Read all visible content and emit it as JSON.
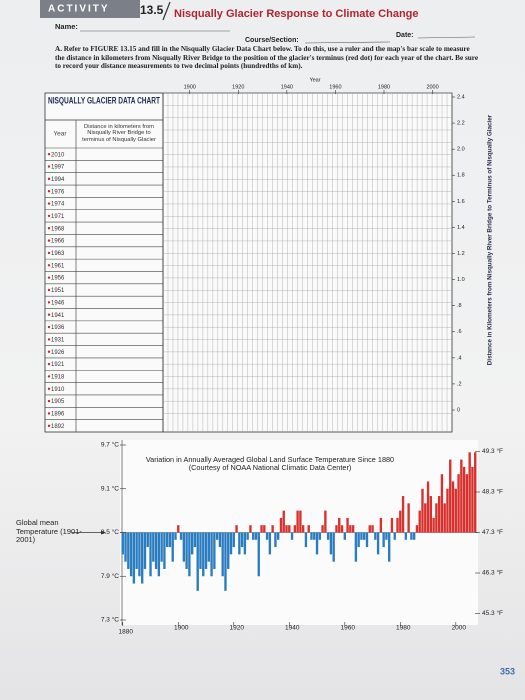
{
  "header": {
    "tab": "ACTIVITY",
    "number": "13.5",
    "title": "Nisqually Glacier Response to Climate Change",
    "name_label": "Name:",
    "course_label": "Course/Section:",
    "date_label": "Date:"
  },
  "instructions": {
    "letter": "A.",
    "text": "Refer to FIGURE 13.15 and fill in the Nisqually Glacier Data Chart below. To do this, use a ruler and the map's bar scale to measure the distance in kilometers from Nisqually River Bridge to the position of the glacier's terminus (red dot) for each year of the chart. Be sure to record your distance measurements to two decimal points (hundredths of km)."
  },
  "data_chart": {
    "title": "NISQUALLY GLACIER DATA CHART",
    "year_header": "Year",
    "distance_header": "Distance in kilometers from Nisqually River Bridge to terminus of Nisqually Glacier",
    "years": [
      2010,
      1997,
      1994,
      1976,
      1974,
      1971,
      1968,
      1966,
      1963,
      1961,
      1956,
      1951,
      1946,
      1941,
      1936,
      1931,
      1926,
      1921,
      1918,
      1910,
      1905,
      1896,
      1892
    ]
  },
  "chart_data": [
    {
      "type": "grid",
      "x_label": "Year",
      "y_label": "Distance in Kilometers from Nisqually River Bridge to Terminus of Nisqually Glacier",
      "xlim": [
        1889,
        2008
      ],
      "ylim": [
        0,
        2.4
      ],
      "xticks": [
        1900,
        1920,
        1940,
        1960,
        1980,
        2000
      ],
      "yticks": [
        0,
        {
          "value": 0.2,
          "label": ".2"
        },
        {
          "value": 0.4,
          "label": ".4"
        },
        {
          "value": 0.6,
          "label": ".6"
        },
        {
          "value": 0.8,
          "label": ".8"
        },
        {
          "value": 1,
          "label": "1.0"
        },
        1.2,
        1.4,
        1.6,
        1.8,
        {
          "value": 2,
          "label": "2.0"
        },
        2.2,
        2.4
      ],
      "grid": true
    },
    {
      "type": "bar",
      "title": "Variation in Annually Averaged Global Land Surface Temperature Since 1880",
      "subtitle": "(Courtesy of NOAA National Climatic Data Center)",
      "annotation": "Global mean Temperature (1901-2001)",
      "x": [
        1880,
        1881,
        1882,
        1883,
        1884,
        1885,
        1886,
        1887,
        1888,
        1889,
        1890,
        1891,
        1892,
        1893,
        1894,
        1895,
        1896,
        1897,
        1898,
        1899,
        1900,
        1901,
        1902,
        1903,
        1904,
        1905,
        1906,
        1907,
        1908,
        1909,
        1910,
        1911,
        1912,
        1913,
        1914,
        1915,
        1916,
        1917,
        1918,
        1919,
        1920,
        1921,
        1922,
        1923,
        1924,
        1925,
        1926,
        1927,
        1928,
        1929,
        1930,
        1931,
        1932,
        1933,
        1934,
        1935,
        1936,
        1937,
        1938,
        1939,
        1940,
        1941,
        1942,
        1943,
        1944,
        1945,
        1946,
        1947,
        1948,
        1949,
        1950,
        1951,
        1952,
        1953,
        1954,
        1955,
        1956,
        1957,
        1958,
        1959,
        1960,
        1961,
        1962,
        1963,
        1964,
        1965,
        1966,
        1967,
        1968,
        1969,
        1970,
        1971,
        1972,
        1973,
        1974,
        1975,
        1976,
        1977,
        1978,
        1979,
        1980,
        1981,
        1982,
        1983,
        1984,
        1985,
        1986,
        1987,
        1988,
        1989,
        1990,
        1991,
        1992,
        1993,
        1994,
        1995,
        1996,
        1997,
        1998,
        1999,
        2000,
        2001,
        2002,
        2003,
        2004,
        2005,
        2006,
        2007
      ],
      "values": [
        8.2,
        8.1,
        8.0,
        7.9,
        7.8,
        8.0,
        7.9,
        7.8,
        8.0,
        8.3,
        7.9,
        8.1,
        8.0,
        7.9,
        8.1,
        8.0,
        8.3,
        8.3,
        8.1,
        8.4,
        8.6,
        8.4,
        8.1,
        8.0,
        7.9,
        8.2,
        8.3,
        7.7,
        8.0,
        7.9,
        8.0,
        8.1,
        7.9,
        8.0,
        8.4,
        8.3,
        7.9,
        7.7,
        8.0,
        8.2,
        8.3,
        8.6,
        8.2,
        8.3,
        8.2,
        8.4,
        8.6,
        8.4,
        8.4,
        7.9,
        8.6,
        8.6,
        8.4,
        8.2,
        8.6,
        8.3,
        8.4,
        8.7,
        8.8,
        8.6,
        8.6,
        8.4,
        8.6,
        8.8,
        8.8,
        8.6,
        8.3,
        8.6,
        8.4,
        8.4,
        8.2,
        8.4,
        8.6,
        8.8,
        8.4,
        8.2,
        8.1,
        8.6,
        8.7,
        8.6,
        8.4,
        8.7,
        8.6,
        8.6,
        8.1,
        8.3,
        8.4,
        8.4,
        8.3,
        8.6,
        8.6,
        8.4,
        8.2,
        8.7,
        8.3,
        8.4,
        8.1,
        8.7,
        8.4,
        8.7,
        8.8,
        9.0,
        8.4,
        8.9,
        8.4,
        8.4,
        8.6,
        8.8,
        9.1,
        8.9,
        9.2,
        9.0,
        8.7,
        8.9,
        9.0,
        9.3,
        8.9,
        9.1,
        9.5,
        9.2,
        9.1,
        9.3,
        9.5,
        9.4,
        9.3,
        9.6,
        9.4,
        9.6
      ],
      "baseline": 8.5,
      "colors": {
        "above": "#d8302d",
        "below": "#2a7cc0"
      },
      "xlim": [
        1879,
        2008
      ],
      "ylim": [
        7.3,
        9.7
      ],
      "xticks": [
        1880,
        1900,
        1920,
        1940,
        1960,
        1980,
        2000
      ],
      "yticks": [
        {
          "value": 7.3,
          "label": "7.3 °C"
        },
        {
          "value": 7.9,
          "label": "7.9 °C"
        },
        {
          "value": 8.5,
          "label": "8.5 °C"
        },
        {
          "value": 9.1,
          "label": "9.1 °C"
        },
        {
          "value": 9.7,
          "label": "9.7 °C"
        }
      ],
      "y2lim": [
        45.14,
        49.46
      ],
      "y2ticks": [
        {
          "value": 45.3,
          "label": "45.3 °F"
        },
        {
          "value": 46.3,
          "label": "46.3 °F"
        },
        {
          "value": 47.3,
          "label": "47.3 °F"
        },
        {
          "value": 48.3,
          "label": "48.3 °F"
        },
        {
          "value": 49.3,
          "label": "49.3 °F"
        }
      ]
    }
  ],
  "page_number": "353"
}
